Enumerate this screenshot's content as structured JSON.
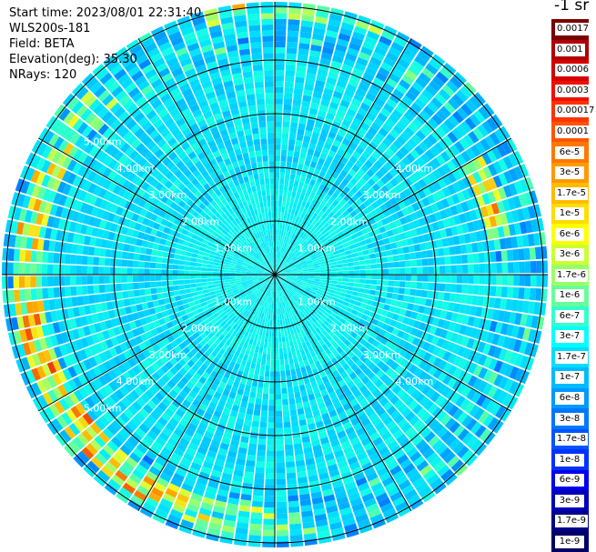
{
  "info": {
    "start_time": "Start time: 2023/08/01 22:31:40",
    "station": "WLS200s-181",
    "field": "Field: BETA",
    "elevation": "Elevation(deg): 35.30",
    "nrays": "NRays: 120"
  },
  "colorbar": {
    "unit": "-1 sr",
    "labels": [
      "0.0017",
      "0.001",
      "0.0006",
      "0.0003",
      "0.00017",
      "0.0001",
      "6e-5",
      "3e-5",
      "1.7e-5",
      "1e-5",
      "6e-6",
      "3e-6",
      "1.7e-6",
      "1e-6",
      "6e-7",
      "3e-7",
      "1.7e-7",
      "1e-7",
      "6e-8",
      "3e-8",
      "1.7e-8",
      "1e-8",
      "6e-9",
      "3e-9",
      "1.7e-9",
      "1e-9"
    ],
    "colors": [
      "#7a0000",
      "#b00000",
      "#d40000",
      "#f01000",
      "#ff3300",
      "#ff5500",
      "#ff7700",
      "#ff9900",
      "#ffbb00",
      "#ffdd00",
      "#ffff00",
      "#ccff33",
      "#99ff66",
      "#66ff99",
      "#33ffcc",
      "#00ffff",
      "#00ddff",
      "#00bbff",
      "#0099ff",
      "#0077ff",
      "#0055ff",
      "#0033ff",
      "#0000ee",
      "#0000bb",
      "#000088",
      "#000066"
    ]
  },
  "range_labels": [
    "1.00km",
    "2.00km",
    "3.00km",
    "4.00km",
    "5.00km"
  ]
}
